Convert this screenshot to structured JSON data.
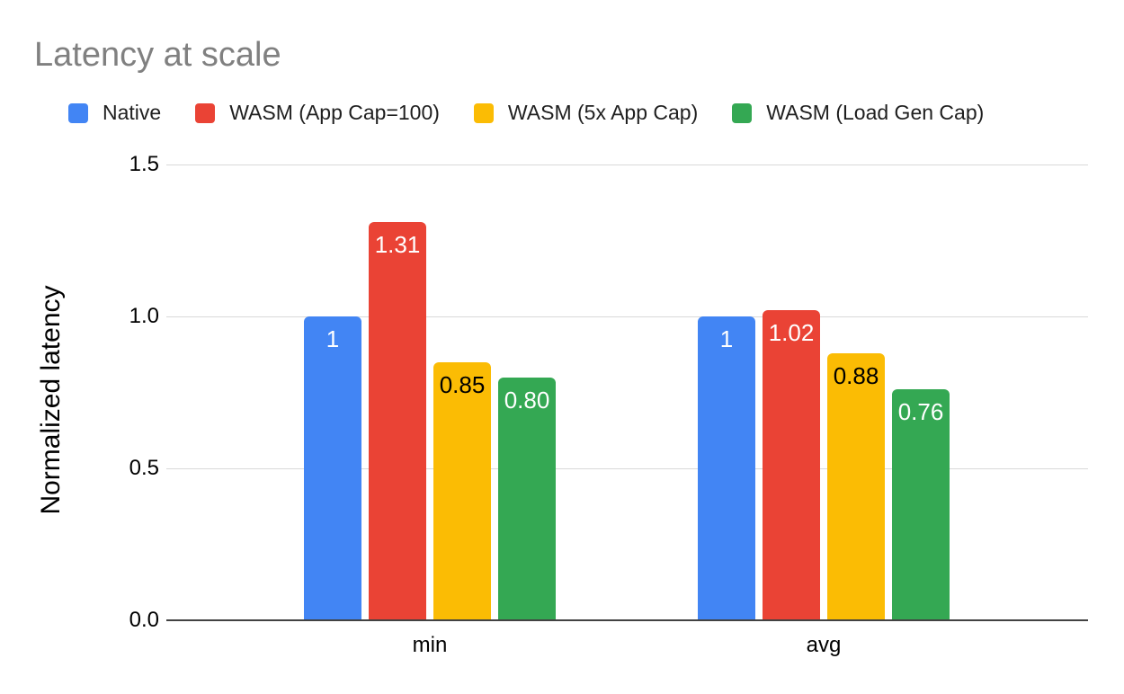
{
  "title": "Latency at scale",
  "legend": [
    {
      "label": "Native",
      "color": "#4285F4"
    },
    {
      "label": "WASM (App Cap=100)",
      "color": "#EA4335"
    },
    {
      "label": "WASM (5x App Cap)",
      "color": "#FBBC04"
    },
    {
      "label": "WASM (Load Gen Cap)",
      "color": "#34A853"
    }
  ],
  "chart_data": {
    "type": "bar",
    "title": "Latency at scale",
    "xlabel": "",
    "ylabel": "Normalized latency",
    "categories": [
      "min",
      "avg"
    ],
    "series": [
      {
        "name": "Native",
        "color": "#4285F4",
        "label_color": "#ffffff",
        "values": [
          1,
          1
        ],
        "value_labels": [
          "1",
          "1"
        ]
      },
      {
        "name": "WASM (App Cap=100)",
        "color": "#EA4335",
        "label_color": "#ffffff",
        "values": [
          1.31,
          1.02
        ],
        "value_labels": [
          "1.31",
          "1.02"
        ]
      },
      {
        "name": "WASM (5x App Cap)",
        "color": "#FBBC04",
        "label_color": "#000000",
        "values": [
          0.85,
          0.88
        ],
        "value_labels": [
          "0.85",
          "0.88"
        ]
      },
      {
        "name": "WASM (Load Gen Cap)",
        "color": "#34A853",
        "label_color": "#ffffff",
        "values": [
          0.8,
          0.76
        ],
        "value_labels": [
          "0.80",
          "0.76"
        ]
      }
    ],
    "ylim": [
      0,
      1.5
    ],
    "yticks": [
      {
        "value": 0,
        "label": "0.0"
      },
      {
        "value": 0.5,
        "label": "0.5"
      },
      {
        "value": 1,
        "label": "1.0"
      },
      {
        "value": 1.5,
        "label": "1.5"
      }
    ],
    "grid": true,
    "legend_position": "top",
    "colors": {
      "title_text": "#808080",
      "axis_line": "#424242",
      "gridline": "#d9d9d9"
    }
  }
}
